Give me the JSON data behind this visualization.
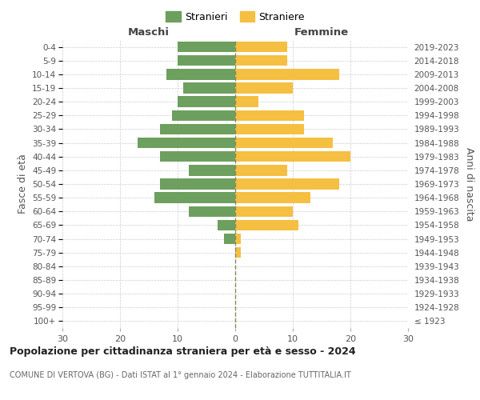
{
  "age_groups": [
    "100+",
    "95-99",
    "90-94",
    "85-89",
    "80-84",
    "75-79",
    "70-74",
    "65-69",
    "60-64",
    "55-59",
    "50-54",
    "45-49",
    "40-44",
    "35-39",
    "30-34",
    "25-29",
    "20-24",
    "15-19",
    "10-14",
    "5-9",
    "0-4"
  ],
  "birth_years": [
    "≤ 1923",
    "1924-1928",
    "1929-1933",
    "1934-1938",
    "1939-1943",
    "1944-1948",
    "1949-1953",
    "1954-1958",
    "1959-1963",
    "1964-1968",
    "1969-1973",
    "1974-1978",
    "1979-1983",
    "1984-1988",
    "1989-1993",
    "1994-1998",
    "1999-2003",
    "2004-2008",
    "2009-2013",
    "2014-2018",
    "2019-2023"
  ],
  "maschi": [
    0,
    0,
    0,
    0,
    0,
    0,
    2,
    3,
    8,
    14,
    13,
    8,
    13,
    17,
    13,
    11,
    10,
    9,
    12,
    10,
    10
  ],
  "femmine": [
    0,
    0,
    0,
    0,
    0,
    1,
    1,
    11,
    10,
    13,
    18,
    9,
    20,
    17,
    12,
    12,
    4,
    10,
    18,
    9,
    9
  ],
  "color_maschi": "#6d9f5e",
  "color_femmine": "#f5bf42",
  "color_center_line": "#8a8a5a",
  "title": "Popolazione per cittadinanza straniera per età e sesso - 2024",
  "subtitle": "COMUNE DI VERTOVA (BG) - Dati ISTAT al 1° gennaio 2024 - Elaborazione TUTTITALIA.IT",
  "label_maschi": "Maschi",
  "label_femmine": "Femmine",
  "legend_stranieri": "Stranieri",
  "legend_straniere": "Straniere",
  "ylabel_left": "Fasce di età",
  "ylabel_right": "Anni di nascita",
  "xlim": 30,
  "background_color": "#ffffff",
  "grid_color": "#cccccc"
}
